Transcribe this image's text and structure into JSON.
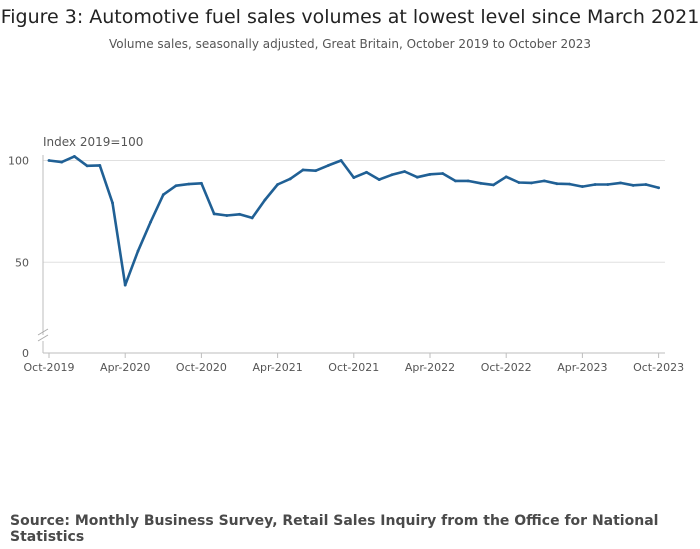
{
  "title": "Figure 3: Automotive fuel sales volumes at lowest level since March 2021",
  "subtitle": "Volume sales, seasonally adjusted, Great Britain, October 2019 to October 2023",
  "source": "Source: Monthly Business Survey, Retail Sales Inquiry from the Office for National Statistics",
  "colors": {
    "line": "#206095",
    "grid": "#e0e0e0",
    "axis": "#bebebe"
  },
  "chart_data": {
    "type": "line",
    "title": "Figure 3: Automotive fuel sales volumes at lowest level since March 2021",
    "ylabel": "Index 2019=100",
    "xlabel": "",
    "ylim": [
      0,
      100
    ],
    "y_ticks": [
      0,
      50,
      100
    ],
    "y_axis_break": true,
    "x_tick_labels": [
      "Oct-2019",
      "Apr-2020",
      "Oct-2020",
      "Apr-2021",
      "Oct-2021",
      "Apr-2022",
      "Oct-2022",
      "Apr-2023",
      "Oct-2023"
    ],
    "x_tick_index": [
      0,
      6,
      12,
      18,
      24,
      30,
      36,
      42,
      48
    ],
    "series": [
      {
        "name": "Automotive fuel",
        "x": [
          "Oct-2019",
          "Nov-2019",
          "Dec-2019",
          "Jan-2020",
          "Feb-2020",
          "Mar-2020",
          "Apr-2020",
          "May-2020",
          "Jun-2020",
          "Jul-2020",
          "Aug-2020",
          "Sep-2020",
          "Oct-2020",
          "Nov-2020",
          "Dec-2020",
          "Jan-2021",
          "Feb-2021",
          "Mar-2021",
          "Apr-2021",
          "May-2021",
          "Jun-2021",
          "Jul-2021",
          "Aug-2021",
          "Sep-2021",
          "Oct-2021",
          "Nov-2021",
          "Dec-2021",
          "Jan-2022",
          "Feb-2022",
          "Mar-2022",
          "Apr-2022",
          "May-2022",
          "Jun-2022",
          "Jul-2022",
          "Aug-2022",
          "Sep-2022",
          "Oct-2022",
          "Nov-2022",
          "Dec-2022",
          "Jan-2023",
          "Feb-2023",
          "Mar-2023",
          "Apr-2023",
          "May-2023",
          "Jun-2023",
          "Jul-2023",
          "Aug-2023",
          "Sep-2023",
          "Oct-2023"
        ],
        "values": [
          100.0,
          99.2,
          102.0,
          97.4,
          97.6,
          79.2,
          38.8,
          55.4,
          69.8,
          83.2,
          87.6,
          88.4,
          88.8,
          73.8,
          73.0,
          73.6,
          71.8,
          80.6,
          88.2,
          91.0,
          95.4,
          95.0,
          97.6,
          100.0,
          91.6,
          94.2,
          90.6,
          93.0,
          94.6,
          91.8,
          93.2,
          93.6,
          90.0,
          90.0,
          88.8,
          88.0,
          92.0,
          89.2,
          89.0,
          90.0,
          88.6,
          88.4,
          87.2,
          88.2,
          88.2,
          89.0,
          87.8,
          88.2,
          86.6
        ]
      }
    ]
  }
}
